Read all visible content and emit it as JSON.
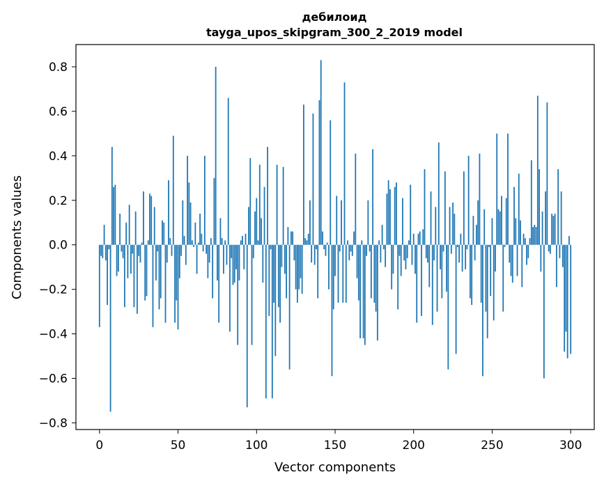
{
  "chart_data": {
    "type": "bar",
    "title": "дебилоид",
    "subtitle": "tayga_upos_skipgram_300_2_2019 model",
    "xlabel": "Vector components",
    "ylabel": "Components values",
    "xlim": [
      -15,
      315
    ],
    "ylim": [
      -0.83,
      0.9
    ],
    "x_ticks": [
      0,
      50,
      100,
      150,
      200,
      250,
      300
    ],
    "x_tick_labels": [
      "0",
      "50",
      "100",
      "150",
      "200",
      "250",
      "300"
    ],
    "y_ticks": [
      -0.8,
      -0.6,
      -0.4,
      -0.2,
      0.0,
      0.2,
      0.4,
      0.6,
      0.8
    ],
    "y_tick_labels": [
      "−0.8",
      "−0.6",
      "−0.4",
      "−0.2",
      "0.0",
      "0.2",
      "0.4",
      "0.6",
      "0.8"
    ],
    "grid": false,
    "bar_color": "#1f77b4",
    "values": [
      -0.37,
      -0.05,
      -0.06,
      0.09,
      -0.07,
      -0.27,
      -0.02,
      -0.75,
      0.44,
      0.26,
      0.27,
      -0.14,
      -0.12,
      0.14,
      -0.03,
      -0.06,
      -0.28,
      0.1,
      -0.15,
      0.18,
      -0.13,
      -0.04,
      -0.28,
      0.15,
      -0.31,
      -0.05,
      -0.08,
      0.01,
      0.24,
      -0.25,
      -0.23,
      0.02,
      0.23,
      0.22,
      -0.37,
      0.17,
      -0.16,
      -0.03,
      -0.29,
      -0.24,
      0.11,
      0.1,
      -0.35,
      -0.08,
      0.29,
      0.03,
      -0.05,
      0.49,
      -0.35,
      -0.25,
      -0.38,
      -0.15,
      -0.05,
      0.2,
      0.04,
      -0.09,
      0.4,
      0.28,
      0.19,
      0.02,
      -0.01,
      0.1,
      -0.13,
      0.01,
      0.14,
      0.05,
      -0.03,
      0.4,
      -0.04,
      -0.15,
      -0.08,
      0.03,
      -0.24,
      0.3,
      0.8,
      -0.16,
      -0.35,
      0.12,
      0.03,
      -0.13,
      0.02,
      -0.09,
      0.66,
      -0.39,
      -0.06,
      -0.18,
      -0.17,
      -0.11,
      -0.45,
      -0.16,
      0.02,
      0.04,
      -0.11,
      0.05,
      -0.73,
      0.17,
      0.39,
      -0.45,
      -0.06,
      0.15,
      0.21,
      0.02,
      0.36,
      0.12,
      -0.17,
      0.26,
      -0.69,
      0.44,
      -0.32,
      -0.02,
      -0.69,
      -0.26,
      -0.5,
      0.36,
      -0.28,
      -0.35,
      -0.1,
      0.35,
      -0.13,
      -0.24,
      0.08,
      -0.56,
      0.06,
      0.06,
      -0.07,
      -0.2,
      -0.26,
      -0.2,
      -0.15,
      -0.22,
      0.63,
      0.03,
      0.02,
      0.05,
      0.2,
      -0.08,
      0.59,
      -0.09,
      -0.02,
      -0.24,
      0.65,
      0.83,
      0.06,
      -0.02,
      -0.05,
      0.01,
      -0.2,
      0.56,
      -0.59,
      -0.29,
      -0.14,
      0.22,
      -0.26,
      -0.03,
      0.2,
      -0.26,
      0.73,
      -0.26,
      0.02,
      -0.07,
      -0.03,
      -0.05,
      0.06,
      0.41,
      -0.15,
      -0.25,
      -0.42,
      0.02,
      -0.42,
      -0.45,
      -0.05,
      0.2,
      -0.03,
      -0.24,
      0.43,
      -0.26,
      -0.3,
      -0.43,
      0.02,
      -0.08,
      0.09,
      -0.02,
      -0.1,
      0.23,
      0.29,
      0.25,
      -0.2,
      -0.13,
      0.26,
      0.28,
      -0.29,
      -0.05,
      -0.14,
      0.21,
      -0.07,
      -0.11,
      -0.06,
      0.02,
      0.27,
      -0.09,
      0.05,
      -0.13,
      -0.35,
      0.05,
      0.06,
      -0.32,
      0.07,
      0.34,
      -0.06,
      -0.08,
      -0.19,
      0.24,
      -0.36,
      -0.07,
      0.17,
      -0.3,
      0.46,
      -0.11,
      -0.24,
      -0.03,
      0.33,
      -0.21,
      -0.56,
      0.17,
      -0.04,
      0.19,
      0.14,
      -0.49,
      -0.01,
      -0.08,
      0.05,
      -0.12,
      0.33,
      -0.11,
      -0.02,
      0.4,
      -0.24,
      -0.27,
      0.13,
      -0.07,
      0.09,
      0.2,
      0.41,
      -0.26,
      -0.59,
      0.16,
      -0.3,
      -0.42,
      -0.01,
      -0.23,
      0.12,
      -0.34,
      -0.12,
      0.5,
      0.16,
      0.15,
      0.22,
      -0.3,
      -0.01,
      0.21,
      0.5,
      -0.08,
      -0.14,
      -0.17,
      0.26,
      0.12,
      -0.14,
      0.32,
      0.11,
      -0.19,
      0.05,
      0.03,
      -0.09,
      -0.06,
      0.03,
      0.38,
      0.08,
      0.09,
      0.08,
      0.67,
      0.34,
      -0.12,
      0.15,
      -0.6,
      0.24,
      0.64,
      -0.03,
      -0.04,
      0.14,
      0.13,
      0.14,
      -0.19,
      0.34,
      -0.06,
      0.24,
      -0.1,
      -0.48,
      -0.39,
      -0.51,
      0.04,
      -0.49
    ]
  }
}
